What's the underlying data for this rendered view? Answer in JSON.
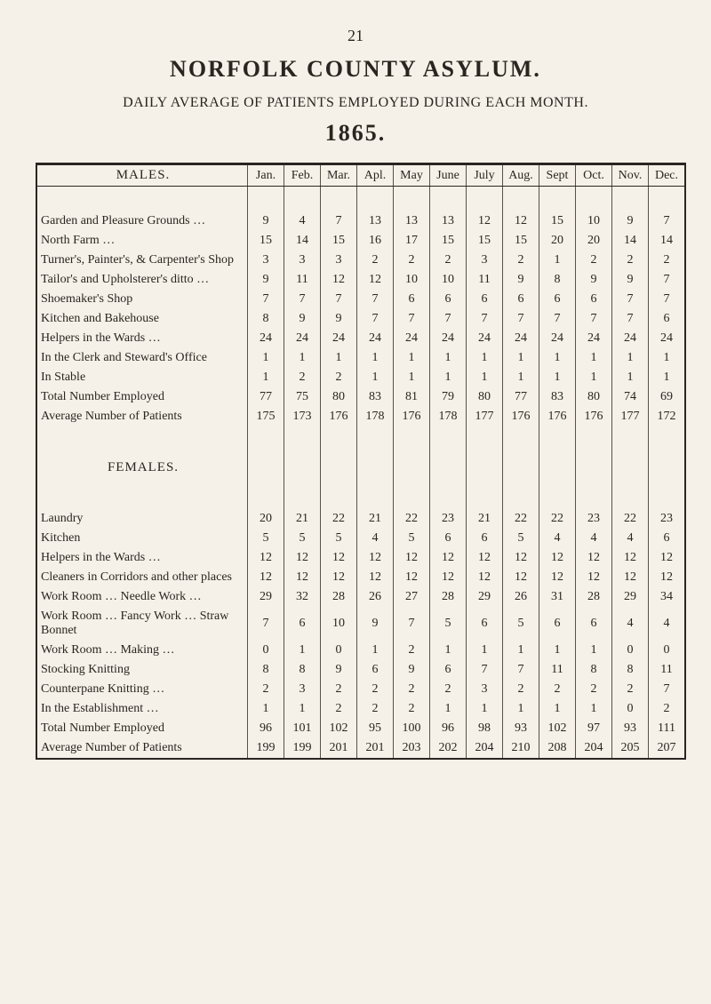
{
  "page_number": "21",
  "title": "NORFOLK COUNTY ASYLUM.",
  "subtitle": "DAILY AVERAGE OF PATIENTS EMPLOYED DURING EACH MONTH.",
  "year": "1865.",
  "columns": [
    "Jan.",
    "Feb.",
    "Mar.",
    "Apl.",
    "May",
    "June",
    "July",
    "Aug.",
    "Sept",
    "Oct.",
    "Nov.",
    "Dec."
  ],
  "sections": [
    {
      "heading": "MALES.",
      "rows": [
        {
          "label": "Garden and Pleasure Grounds …",
          "v": [
            "9",
            "4",
            "7",
            "13",
            "13",
            "13",
            "12",
            "12",
            "15",
            "10",
            "9",
            "7"
          ]
        },
        {
          "label": "North Farm …",
          "v": [
            "15",
            "14",
            "15",
            "16",
            "17",
            "15",
            "15",
            "15",
            "20",
            "20",
            "14",
            "14"
          ]
        },
        {
          "label": "Turner's, Painter's, & Carpenter's Shop",
          "v": [
            "3",
            "3",
            "3",
            "2",
            "2",
            "2",
            "3",
            "2",
            "1",
            "2",
            "2",
            "2"
          ]
        },
        {
          "label": "Tailor's and Upholsterer's ditto …",
          "v": [
            "9",
            "11",
            "12",
            "12",
            "10",
            "10",
            "11",
            "9",
            "8",
            "9",
            "9",
            "7"
          ]
        },
        {
          "label": "Shoemaker's Shop",
          "v": [
            "7",
            "7",
            "7",
            "7",
            "6",
            "6",
            "6",
            "6",
            "6",
            "6",
            "7",
            "7"
          ]
        },
        {
          "label": "Kitchen and Bakehouse",
          "v": [
            "8",
            "9",
            "9",
            "7",
            "7",
            "7",
            "7",
            "7",
            "7",
            "7",
            "7",
            "6"
          ]
        },
        {
          "label": "Helpers in the Wards …",
          "v": [
            "24",
            "24",
            "24",
            "24",
            "24",
            "24",
            "24",
            "24",
            "24",
            "24",
            "24",
            "24"
          ]
        },
        {
          "label": "In the Clerk and Steward's Office",
          "v": [
            "1",
            "1",
            "1",
            "1",
            "1",
            "1",
            "1",
            "1",
            "1",
            "1",
            "1",
            "1"
          ]
        },
        {
          "label": "In Stable",
          "v": [
            "1",
            "2",
            "2",
            "1",
            "1",
            "1",
            "1",
            "1",
            "1",
            "1",
            "1",
            "1"
          ]
        },
        {
          "label": "Total Number Employed",
          "v": [
            "77",
            "75",
            "80",
            "83",
            "81",
            "79",
            "80",
            "77",
            "83",
            "80",
            "74",
            "69"
          ]
        },
        {
          "label": "Average Number of Patients",
          "v": [
            "175",
            "173",
            "176",
            "178",
            "176",
            "178",
            "177",
            "176",
            "176",
            "176",
            "177",
            "172"
          ]
        }
      ]
    },
    {
      "heading": "FEMALES.",
      "rows": [
        {
          "label": "Laundry",
          "v": [
            "20",
            "21",
            "22",
            "21",
            "22",
            "23",
            "21",
            "22",
            "22",
            "23",
            "22",
            "23"
          ]
        },
        {
          "label": "Kitchen",
          "v": [
            "5",
            "5",
            "5",
            "4",
            "5",
            "6",
            "6",
            "5",
            "4",
            "4",
            "4",
            "6"
          ]
        },
        {
          "label": "Helpers in the Wards …",
          "v": [
            "12",
            "12",
            "12",
            "12",
            "12",
            "12",
            "12",
            "12",
            "12",
            "12",
            "12",
            "12"
          ]
        },
        {
          "label": "Cleaners in Corridors and other places",
          "v": [
            "12",
            "12",
            "12",
            "12",
            "12",
            "12",
            "12",
            "12",
            "12",
            "12",
            "12",
            "12"
          ]
        },
        {
          "label": "Work Room … Needle Work …",
          "v": [
            "29",
            "32",
            "28",
            "26",
            "27",
            "28",
            "29",
            "26",
            "31",
            "28",
            "29",
            "34"
          ]
        },
        {
          "label": "Work Room … Fancy Work … Straw Bonnet",
          "v": [
            "7",
            "6",
            "10",
            "9",
            "7",
            "5",
            "6",
            "5",
            "6",
            "6",
            "4",
            "4"
          ]
        },
        {
          "label": "Work Room … Making …",
          "v": [
            "0",
            "1",
            "0",
            "1",
            "2",
            "1",
            "1",
            "1",
            "1",
            "1",
            "0",
            "0"
          ]
        },
        {
          "label": "Stocking Knitting",
          "v": [
            "8",
            "8",
            "9",
            "6",
            "9",
            "6",
            "7",
            "7",
            "11",
            "8",
            "8",
            "11"
          ]
        },
        {
          "label": "Counterpane Knitting …",
          "v": [
            "2",
            "3",
            "2",
            "2",
            "2",
            "2",
            "3",
            "2",
            "2",
            "2",
            "2",
            "7"
          ]
        },
        {
          "label": "In the Establishment …",
          "v": [
            "1",
            "1",
            "2",
            "2",
            "2",
            "1",
            "1",
            "1",
            "1",
            "1",
            "0",
            "2"
          ]
        },
        {
          "label": "Total Number Employed",
          "v": [
            "96",
            "101",
            "102",
            "95",
            "100",
            "96",
            "98",
            "93",
            "102",
            "97",
            "93",
            "111"
          ]
        },
        {
          "label": "Average Number of Patients",
          "v": [
            "199",
            "199",
            "201",
            "201",
            "203",
            "202",
            "204",
            "210",
            "208",
            "204",
            "205",
            "207"
          ]
        }
      ]
    }
  ]
}
